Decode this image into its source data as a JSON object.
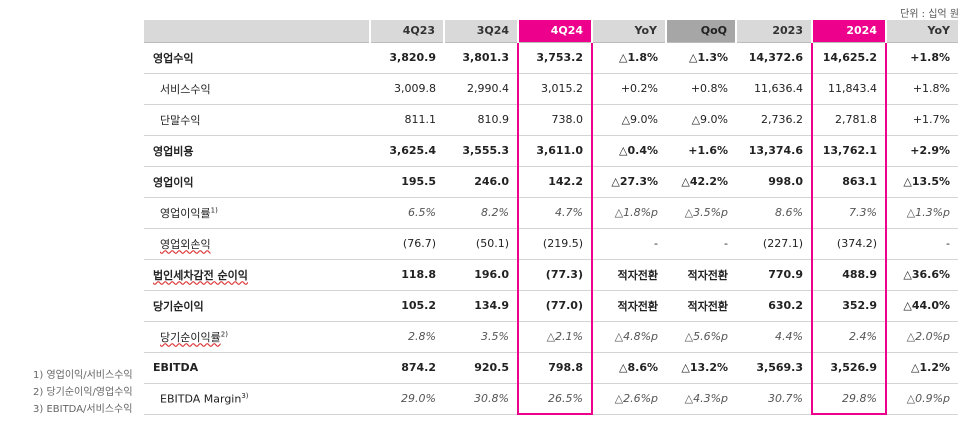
{
  "unit_label": "단위 : 십억 원",
  "headers": [
    "",
    "4Q23",
    "3Q24",
    "4Q24",
    "YoY",
    "QoQ",
    "2023",
    "2024",
    "YoY"
  ],
  "rows": [
    {
      "label": "영업수익",
      "sup": "",
      "values": [
        "3,820.9",
        "3,801.3",
        "3,753.2",
        "△1.8%",
        "△1.3%",
        "14,372.6",
        "14,625.2",
        "+1.8%"
      ]
    },
    {
      "label": "서비스수익",
      "sup": "",
      "values": [
        "3,009.8",
        "2,990.4",
        "3,015.2",
        "+0.2%",
        "+0.8%",
        "11,636.4",
        "11,843.4",
        "+1.8%"
      ]
    },
    {
      "label": "단말수익",
      "sup": "",
      "values": [
        "811.1",
        "810.9",
        "738.0",
        "△9.0%",
        "△9.0%",
        "2,736.2",
        "2,781.8",
        "+1.7%"
      ]
    },
    {
      "label": "영업비용",
      "sup": "",
      "values": [
        "3,625.4",
        "3,555.3",
        "3,611.0",
        "△0.4%",
        "+1.6%",
        "13,374.6",
        "13,762.1",
        "+2.9%"
      ]
    },
    {
      "label": "영업이익",
      "sup": "",
      "values": [
        "195.5",
        "246.0",
        "142.2",
        "△27.3%",
        "△42.2%",
        "998.0",
        "863.1",
        "△13.5%"
      ]
    },
    {
      "label": "영업이익률",
      "sup": "1)",
      "values": [
        "6.5%",
        "8.2%",
        "4.7%",
        "△1.8%p",
        "△3.5%p",
        "8.6%",
        "7.3%",
        "△1.3%p"
      ]
    },
    {
      "label": "영업외손익",
      "sup": "",
      "values": [
        "(76.7)",
        "(50.1)",
        "(219.5)",
        "-",
        "-",
        "(227.1)",
        "(374.2)",
        "-"
      ]
    },
    {
      "label": "법인세차감전 순이익",
      "sup": "",
      "values": [
        "118.8",
        "196.0",
        "(77.3)",
        "적자전환",
        "적자전환",
        "770.9",
        "488.9",
        "△36.6%"
      ]
    },
    {
      "label": "당기순이익",
      "sup": "",
      "values": [
        "105.2",
        "134.9",
        "(77.0)",
        "적자전환",
        "적자전환",
        "630.2",
        "352.9",
        "△44.0%"
      ]
    },
    {
      "label": "당기순이익률",
      "sup": "2)",
      "values": [
        "2.8%",
        "3.5%",
        "△2.1%",
        "△4.8%p",
        "△5.6%p",
        "4.4%",
        "2.4%",
        "△2.0%p"
      ]
    },
    {
      "label": "EBITDA",
      "sup": "",
      "values": [
        "874.2",
        "920.5",
        "798.8",
        "△8.6%",
        "△13.2%",
        "3,569.3",
        "3,526.9",
        "△1.2%"
      ]
    },
    {
      "label": "EBITDA Margin",
      "sup": "3)",
      "values": [
        "29.0%",
        "30.8%",
        "26.5%",
        "△2.6%p",
        "△4.3%p",
        "30.7%",
        "29.8%",
        "△0.9%p"
      ]
    }
  ],
  "footnotes": [
    "1) 영업이익/서비스수익",
    "2) 당기순이익/영업수익",
    "3) EBITDA/서비스수익"
  ],
  "colors": {
    "highlight": "#ec008c",
    "header_grey": "#d9d9d9",
    "header_dark": "#a6a6a6"
  }
}
